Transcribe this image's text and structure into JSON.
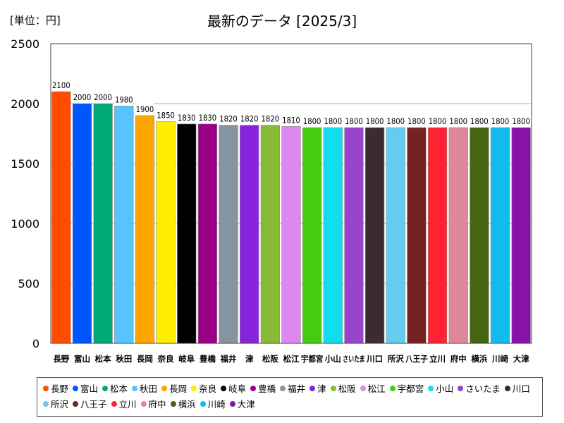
{
  "chart_data": {
    "type": "bar",
    "title": "最新のデータ [2025/3]",
    "unit_label": "[単位：円]",
    "ylim": [
      0,
      2500
    ],
    "yticks": [
      0,
      500,
      1000,
      1500,
      2000,
      2500
    ],
    "categories": [
      "長野",
      "富山",
      "松本",
      "秋田",
      "長岡",
      "奈良",
      "岐阜",
      "豊橋",
      "福井",
      "津",
      "松阪",
      "松江",
      "宇都宮",
      "小山",
      "さいたま",
      "川口",
      "所沢",
      "八王子",
      "立川",
      "府中",
      "横浜",
      "川崎",
      "大津"
    ],
    "values": [
      2100,
      2000,
      2000,
      1980,
      1900,
      1850,
      1830,
      1830,
      1820,
      1820,
      1820,
      1810,
      1800,
      1800,
      1800,
      1800,
      1800,
      1800,
      1800,
      1800,
      1800,
      1800,
      1800
    ],
    "colors": [
      "#ff4c00",
      "#0055ff",
      "#00aa77",
      "#55c4ff",
      "#ffa500",
      "#ffee00",
      "#000000",
      "#990088",
      "#8494a0",
      "#8822dd",
      "#88bb33",
      "#dd88ee",
      "#44cc11",
      "#11ddee",
      "#9944cc",
      "#3d2a33",
      "#66ccee",
      "#772222",
      "#ff2233",
      "#dd8899",
      "#446611",
      "#11bbee",
      "#8811aa"
    ],
    "legend_position": "bottom",
    "grid": "y-major"
  }
}
